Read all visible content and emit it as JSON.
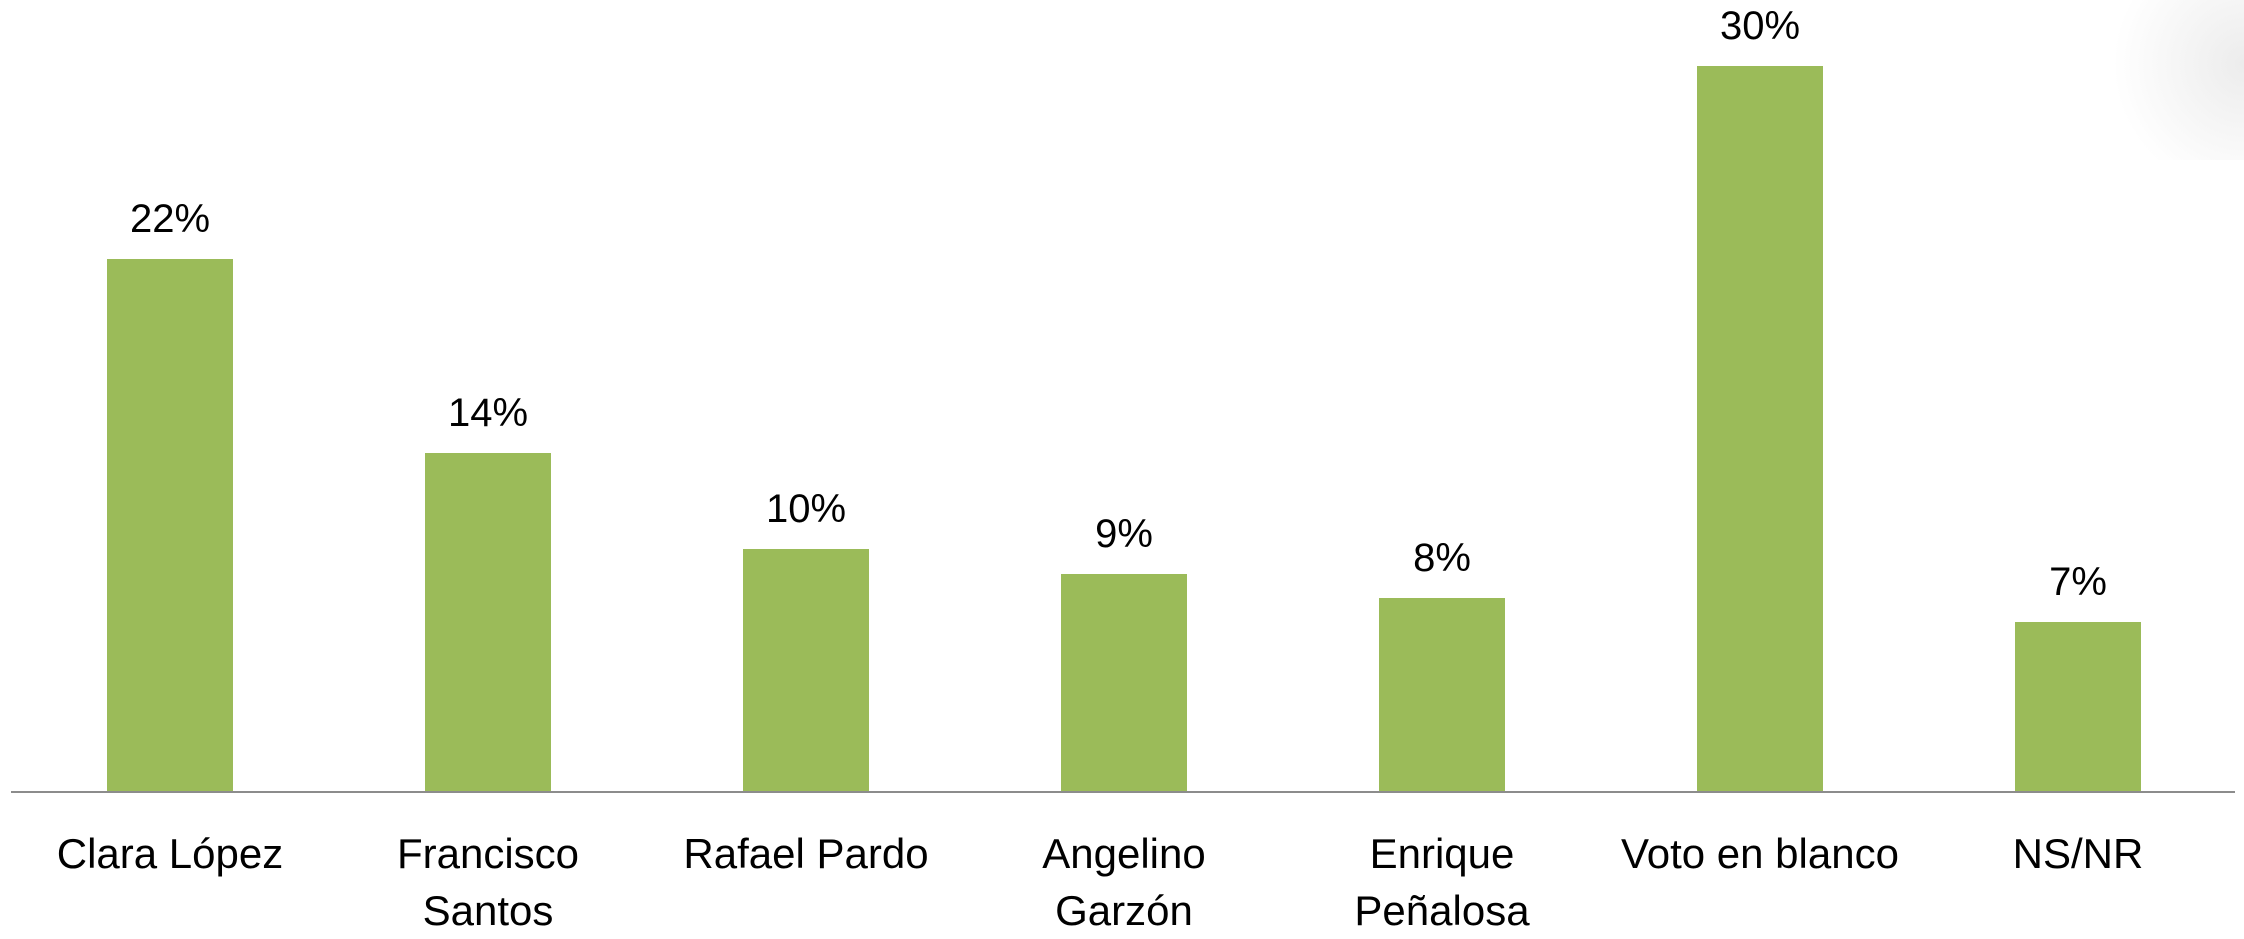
{
  "chart_data": {
    "type": "bar",
    "categories": [
      "Clara López",
      "Francisco\nSantos",
      "Rafael Pardo",
      "Angelino\nGarzón",
      "Enrique\nPeñalosa",
      "Voto en blanco",
      "NS/NR"
    ],
    "values": [
      22,
      14,
      10,
      9,
      8,
      30,
      7
    ],
    "value_labels": [
      "22%",
      "14%",
      "10%",
      "9%",
      "8%",
      "30%",
      "7%"
    ],
    "color": "#9bbb59"
  }
}
